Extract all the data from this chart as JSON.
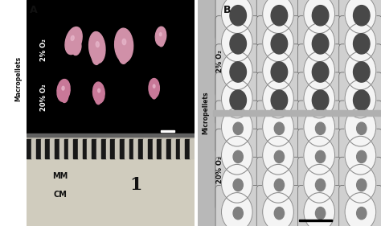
{
  "fig_width": 4.74,
  "fig_height": 2.81,
  "dpi": 100,
  "panel_A": {
    "label": "A",
    "bg_black": "#000000",
    "ruler_bg": "#b8b4a8",
    "ruler_stripe_dark": "#1a1a1a",
    "ruler_stripe_light": "#d0ccc0",
    "text_2pct_o2": "2% O₂",
    "text_20pct_o2": "20% O₂",
    "ylabel": "Macropellets",
    "pellet_color_2pct": "#d090a8",
    "pellet_color_20pct": "#c87898",
    "scale_bar_color": "#ffffff",
    "ruler_text_mm": "MM",
    "ruler_text_cm": "CM",
    "ruler_text_1": "1",
    "pellets_2pct": [
      [
        0.28,
        0.82,
        0.045,
        0.065,
        -30
      ],
      [
        0.42,
        0.79,
        0.048,
        0.07,
        10
      ],
      [
        0.58,
        0.8,
        0.055,
        0.075,
        5
      ],
      [
        0.8,
        0.84,
        0.032,
        0.042,
        -10
      ]
    ],
    "pellets_20pct": [
      [
        0.22,
        0.6,
        0.038,
        0.05,
        -15
      ],
      [
        0.43,
        0.59,
        0.035,
        0.047,
        8
      ],
      [
        0.76,
        0.61,
        0.032,
        0.043,
        0
      ]
    ]
  },
  "panel_B": {
    "label": "B",
    "bg_color": "#c0c0c0",
    "well_face": "#d8d8d8",
    "well_edge": "#888888",
    "inner_color": "#f0f0f0",
    "pellet_dark": "#484848",
    "pellet_light": "#808080",
    "text_2pct_o2": "2% O₂",
    "text_20pct_o2": "20% O₂",
    "ylabel": "Micropellets",
    "scale_bar_color": "#000000",
    "grid_rows": 4,
    "grid_cols": 4
  },
  "font_color_white": "#ffffff",
  "font_color_black": "#000000",
  "label_fontsize": 9,
  "annotation_fontsize": 6.0,
  "ylabel_fontsize": 5.5
}
